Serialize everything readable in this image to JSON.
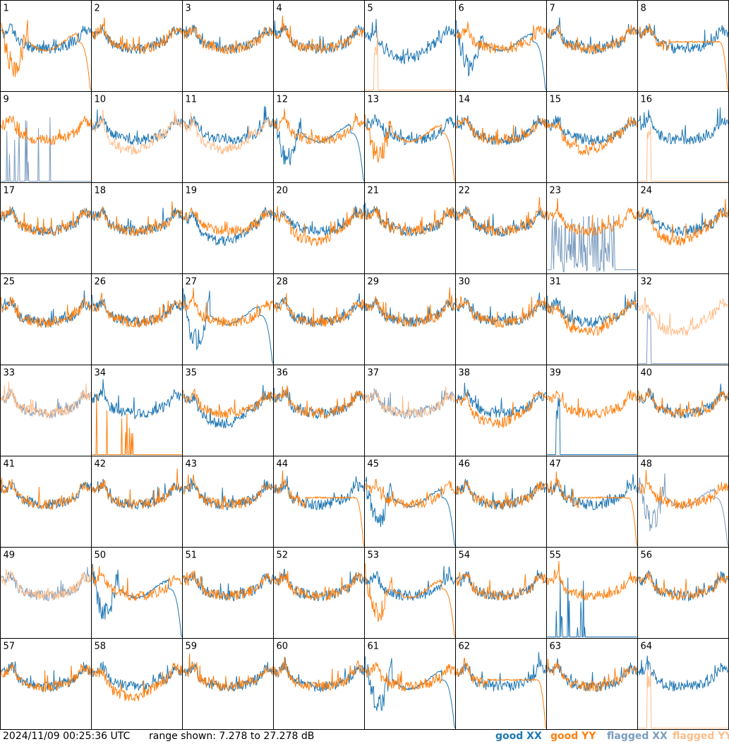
{
  "chart_data": {
    "type": "line",
    "layout": "8x8 small multiples",
    "panels": [
      {
        "label": "1",
        "xx": "good",
        "yy": "good",
        "xx_shape": "ripple",
        "yy_shape": "dip-dropoff"
      },
      {
        "label": "2",
        "xx": "good",
        "yy": "good",
        "xx_shape": "ripple",
        "yy_shape": "ripple"
      },
      {
        "label": "3",
        "xx": "good",
        "yy": "good",
        "xx_shape": "ripple",
        "yy_shape": "ripple"
      },
      {
        "label": "4",
        "xx": "good",
        "yy": "good",
        "xx_shape": "ripple",
        "yy_shape": "ripple"
      },
      {
        "label": "5",
        "xx": "good",
        "yy": "flagged",
        "xx_shape": "ripple-low",
        "yy_shape": "spike-floor"
      },
      {
        "label": "6",
        "xx": "good",
        "yy": "good",
        "xx_shape": "dip-dropoff",
        "yy_shape": "ripple"
      },
      {
        "label": "7",
        "xx": "good",
        "yy": "good",
        "xx_shape": "ripple",
        "yy_shape": "ripple"
      },
      {
        "label": "8",
        "xx": "good",
        "yy": "good",
        "xx_shape": "ripple",
        "yy_shape": "flat-drop"
      },
      {
        "label": "9",
        "xx": "flagged",
        "yy": "good",
        "xx_shape": "spikes-floor",
        "yy_shape": "ripple"
      },
      {
        "label": "10",
        "xx": "good",
        "yy": "flagged",
        "xx_shape": "ripple",
        "yy_shape": "ripple-low"
      },
      {
        "label": "11",
        "xx": "good",
        "yy": "flagged",
        "xx_shape": "ripple",
        "yy_shape": "ripple-low"
      },
      {
        "label": "12",
        "xx": "good",
        "yy": "good",
        "xx_shape": "dip-dropoff",
        "yy_shape": "ripple"
      },
      {
        "label": "13",
        "xx": "good",
        "yy": "good",
        "xx_shape": "ripple",
        "yy_shape": "dip-dropoff"
      },
      {
        "label": "14",
        "xx": "good",
        "yy": "good",
        "xx_shape": "ripple",
        "yy_shape": "ripple"
      },
      {
        "label": "15",
        "xx": "good",
        "yy": "good",
        "xx_shape": "ripple",
        "yy_shape": "ripple-low"
      },
      {
        "label": "16",
        "xx": "good",
        "yy": "flagged",
        "xx_shape": "ripple",
        "yy_shape": "spike-floor"
      },
      {
        "label": "17",
        "xx": "good",
        "yy": "good",
        "xx_shape": "ripple",
        "yy_shape": "ripple"
      },
      {
        "label": "18",
        "xx": "good",
        "yy": "good",
        "xx_shape": "ripple",
        "yy_shape": "ripple"
      },
      {
        "label": "19",
        "xx": "good",
        "yy": "good",
        "xx_shape": "ripple-low",
        "yy_shape": "ripple"
      },
      {
        "label": "20",
        "xx": "good",
        "yy": "good",
        "xx_shape": "ripple",
        "yy_shape": "ripple-low"
      },
      {
        "label": "21",
        "xx": "good",
        "yy": "good",
        "xx_shape": "ripple",
        "yy_shape": "ripple"
      },
      {
        "label": "22",
        "xx": "good",
        "yy": "good",
        "xx_shape": "ripple",
        "yy_shape": "ripple"
      },
      {
        "label": "23",
        "xx": "flagged",
        "yy": "good",
        "xx_shape": "noise-floor",
        "yy_shape": "ripple"
      },
      {
        "label": "24",
        "xx": "good",
        "yy": "good",
        "xx_shape": "ripple",
        "yy_shape": "ripple-low"
      },
      {
        "label": "25",
        "xx": "good",
        "yy": "good",
        "xx_shape": "ripple",
        "yy_shape": "ripple"
      },
      {
        "label": "26",
        "xx": "good",
        "yy": "good",
        "xx_shape": "ripple",
        "yy_shape": "ripple"
      },
      {
        "label": "27",
        "xx": "good",
        "yy": "good",
        "xx_shape": "dip-dropoff",
        "yy_shape": "ripple"
      },
      {
        "label": "28",
        "xx": "good",
        "yy": "good",
        "xx_shape": "ripple",
        "yy_shape": "ripple"
      },
      {
        "label": "29",
        "xx": "good",
        "yy": "good",
        "xx_shape": "ripple",
        "yy_shape": "ripple"
      },
      {
        "label": "30",
        "xx": "good",
        "yy": "good",
        "xx_shape": "ripple",
        "yy_shape": "ripple"
      },
      {
        "label": "31",
        "xx": "good",
        "yy": "good",
        "xx_shape": "ripple",
        "yy_shape": "ripple-low"
      },
      {
        "label": "32",
        "xx": "flagged",
        "yy": "flagged",
        "xx_shape": "spike-floor",
        "yy_shape": "ripple-low"
      },
      {
        "label": "33",
        "xx": "flagged",
        "yy": "flagged",
        "xx_shape": "ripple",
        "yy_shape": "ripple"
      },
      {
        "label": "34",
        "xx": "good",
        "yy": "good",
        "xx_shape": "ripple",
        "yy_shape": "spikes-floor"
      },
      {
        "label": "35",
        "xx": "good",
        "yy": "good",
        "xx_shape": "ripple-low",
        "yy_shape": "ripple"
      },
      {
        "label": "36",
        "xx": "good",
        "yy": "good",
        "xx_shape": "ripple",
        "yy_shape": "ripple"
      },
      {
        "label": "37",
        "xx": "flagged",
        "yy": "flagged",
        "xx_shape": "ripple",
        "yy_shape": "ripple"
      },
      {
        "label": "38",
        "xx": "good",
        "yy": "good",
        "xx_shape": "ripple",
        "yy_shape": "ripple-low"
      },
      {
        "label": "39",
        "xx": "good",
        "yy": "good",
        "xx_shape": "spike-floor",
        "yy_shape": "ripple"
      },
      {
        "label": "40",
        "xx": "good",
        "yy": "good",
        "xx_shape": "ripple",
        "yy_shape": "ripple"
      },
      {
        "label": "41",
        "xx": "good",
        "yy": "good",
        "xx_shape": "ripple",
        "yy_shape": "ripple"
      },
      {
        "label": "42",
        "xx": "good",
        "yy": "good",
        "xx_shape": "ripple",
        "yy_shape": "ripple"
      },
      {
        "label": "43",
        "xx": "good",
        "yy": "good",
        "xx_shape": "ripple",
        "yy_shape": "ripple"
      },
      {
        "label": "44",
        "xx": "good",
        "yy": "good",
        "xx_shape": "ripple",
        "yy_shape": "flat-drop"
      },
      {
        "label": "45",
        "xx": "good",
        "yy": "good",
        "xx_shape": "dip-dropoff",
        "yy_shape": "ripple"
      },
      {
        "label": "46",
        "xx": "good",
        "yy": "good",
        "xx_shape": "ripple",
        "yy_shape": "ripple"
      },
      {
        "label": "47",
        "xx": "good",
        "yy": "good",
        "xx_shape": "ripple",
        "yy_shape": "flat-drop"
      },
      {
        "label": "48",
        "xx": "flagged",
        "yy": "good",
        "xx_shape": "dip-dropoff",
        "yy_shape": "ripple"
      },
      {
        "label": "49",
        "xx": "flagged",
        "yy": "flagged",
        "xx_shape": "ripple",
        "yy_shape": "ripple"
      },
      {
        "label": "50",
        "xx": "good",
        "yy": "good",
        "xx_shape": "dip-dropoff",
        "yy_shape": "ripple"
      },
      {
        "label": "51",
        "xx": "good",
        "yy": "good",
        "xx_shape": "ripple",
        "yy_shape": "ripple"
      },
      {
        "label": "52",
        "xx": "good",
        "yy": "good",
        "xx_shape": "ripple",
        "yy_shape": "ripple"
      },
      {
        "label": "53",
        "xx": "good",
        "yy": "good",
        "xx_shape": "ripple",
        "yy_shape": "dip-dropoff"
      },
      {
        "label": "54",
        "xx": "good",
        "yy": "good",
        "xx_shape": "ripple",
        "yy_shape": "ripple"
      },
      {
        "label": "55",
        "xx": "good",
        "yy": "good",
        "xx_shape": "spikes-floor",
        "yy_shape": "ripple"
      },
      {
        "label": "56",
        "xx": "good",
        "yy": "good",
        "xx_shape": "ripple",
        "yy_shape": "ripple"
      },
      {
        "label": "57",
        "xx": "good",
        "yy": "good",
        "xx_shape": "ripple",
        "yy_shape": "ripple"
      },
      {
        "label": "58",
        "xx": "good",
        "yy": "good",
        "xx_shape": "ripple",
        "yy_shape": "ripple-low"
      },
      {
        "label": "59",
        "xx": "good",
        "yy": "good",
        "xx_shape": "ripple",
        "yy_shape": "ripple"
      },
      {
        "label": "60",
        "xx": "good",
        "yy": "good",
        "xx_shape": "ripple",
        "yy_shape": "ripple"
      },
      {
        "label": "61",
        "xx": "good",
        "yy": "good",
        "xx_shape": "dip-dropoff",
        "yy_shape": "ripple"
      },
      {
        "label": "62",
        "xx": "good",
        "yy": "good",
        "xx_shape": "ripple",
        "yy_shape": "flat-drop"
      },
      {
        "label": "63",
        "xx": "good",
        "yy": "good",
        "xx_shape": "ripple",
        "yy_shape": "ripple"
      },
      {
        "label": "64",
        "xx": "good",
        "yy": "flagged",
        "xx_shape": "ripple",
        "yy_shape": "spike-floor"
      }
    ],
    "ylim": [
      7.278,
      27.278
    ],
    "grid": false,
    "legend_position": "bottom-right"
  },
  "footer": {
    "timestamp": "2024/11/09 00:25:36 UTC",
    "range": "range shown: 7.278 to 27.278 dB",
    "legend": [
      {
        "label": "good XX",
        "color": "#1f77b4"
      },
      {
        "label": "good YY",
        "color": "#ff7f0e"
      },
      {
        "label": "flagged XX",
        "color": "#7b9cbf"
      },
      {
        "label": "flagged YY",
        "color": "#ffbd8a"
      }
    ]
  },
  "colors": {
    "good_xx": "#1f77b4",
    "good_yy": "#ff7f0e",
    "flagged_xx": "#7b9cbf",
    "flagged_yy": "#ffbd8a"
  }
}
